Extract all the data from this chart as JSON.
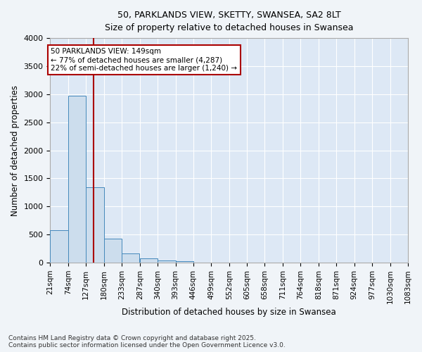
{
  "title_line1": "50, PARKLANDS VIEW, SKETTY, SWANSEA, SA2 8LT",
  "title_line2": "Size of property relative to detached houses in Swansea",
  "xlabel": "Distribution of detached houses by size in Swansea",
  "ylabel": "Number of detached properties",
  "bar_color": "#ccdded",
  "bar_edge_color": "#4488bb",
  "bg_color": "#dde8f5",
  "grid_color": "#ffffff",
  "annotation_box_color": "#aa0000",
  "vline_color": "#aa0000",
  "bins": [
    21,
    74,
    127,
    180,
    233,
    287,
    340,
    393,
    446,
    499,
    552,
    605,
    658,
    711,
    764,
    818,
    871,
    924,
    977,
    1030,
    1083
  ],
  "counts": [
    580,
    2970,
    1340,
    430,
    160,
    80,
    45,
    30,
    0,
    0,
    0,
    0,
    0,
    0,
    0,
    0,
    0,
    0,
    0,
    0
  ],
  "property_size": 149,
  "annotation_text": "50 PARKLANDS VIEW: 149sqm\n← 77% of detached houses are smaller (4,287)\n22% of semi-detached houses are larger (1,240) →",
  "footer_text": "Contains HM Land Registry data © Crown copyright and database right 2025.\nContains public sector information licensed under the Open Government Licence v3.0.",
  "ylim": [
    0,
    4000
  ],
  "yticks": [
    0,
    500,
    1000,
    1500,
    2000,
    2500,
    3000,
    3500,
    4000
  ],
  "figsize": [
    6.0,
    5.0
  ],
  "dpi": 100
}
